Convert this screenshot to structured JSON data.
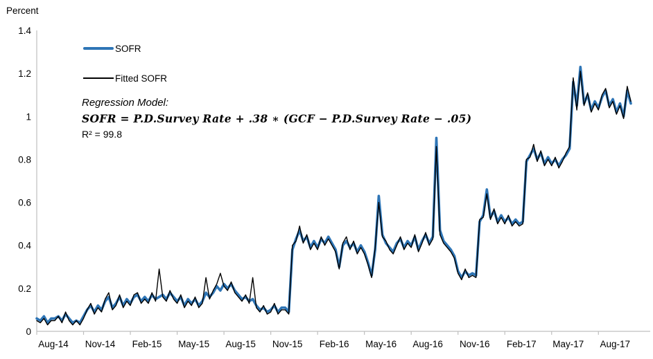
{
  "colors": {
    "accent_blue": "#2E75B6",
    "line_black": "#000000",
    "axis_gray": "#BFBFBF"
  },
  "axis": {
    "y_title": "Percent"
  },
  "legend": {
    "items": [
      {
        "label": "SOFR",
        "color": "#2E75B6",
        "style": "thick"
      },
      {
        "label": "Fitted SOFR",
        "color": "#000000",
        "style": "thin"
      }
    ]
  },
  "annotation": {
    "title": "Regression Model:",
    "formula": "SOFR = P.D.Survey Rate +  .38 ∗ (GCF − P.D.Survey Rate −  .05)",
    "r2": "R² = 99.8"
  },
  "chart_data": {
    "type": "line",
    "title": "",
    "xlabel": "",
    "ylabel": "Percent",
    "ylim": [
      0,
      1.4
    ],
    "y_tick_labels": [
      "0",
      "0.2",
      "0.4",
      "0.6",
      "0.8",
      "1",
      "1.2",
      "1.4"
    ],
    "y_tick_values": [
      0,
      0.2,
      0.4,
      0.6,
      0.8,
      1,
      1.2,
      1.4
    ],
    "grid": false,
    "legend_position": "inside-top-left",
    "x_unit": "weekly samples from Aug-2014 to Oct-2017 (values estimated from plot)",
    "x_tick_labels": [
      "Aug-14",
      "Nov-14",
      "Feb-15",
      "May-15",
      "Aug-15",
      "Nov-15",
      "Feb-16",
      "May-16",
      "Aug-16",
      "Nov-16",
      "Feb-17",
      "May-17",
      "Aug-17"
    ],
    "x_tick_indices": [
      0,
      13,
      26,
      39,
      52,
      65,
      78,
      91,
      104,
      117,
      130,
      143,
      156
    ],
    "x_axis_max_index": 170,
    "series": [
      {
        "name": "SOFR",
        "color": "#2E75B6",
        "stroke_width": 3.6,
        "values": [
          0.06,
          0.05,
          0.07,
          0.04,
          0.06,
          0.06,
          0.07,
          0.05,
          0.08,
          0.06,
          0.04,
          0.05,
          0.04,
          0.07,
          0.1,
          0.12,
          0.09,
          0.12,
          0.1,
          0.14,
          0.16,
          0.11,
          0.13,
          0.16,
          0.12,
          0.15,
          0.13,
          0.16,
          0.17,
          0.14,
          0.16,
          0.14,
          0.17,
          0.15,
          0.16,
          0.17,
          0.15,
          0.18,
          0.16,
          0.14,
          0.16,
          0.12,
          0.15,
          0.13,
          0.15,
          0.12,
          0.14,
          0.18,
          0.16,
          0.18,
          0.21,
          0.19,
          0.22,
          0.2,
          0.22,
          0.19,
          0.17,
          0.15,
          0.16,
          0.14,
          0.15,
          0.12,
          0.1,
          0.11,
          0.09,
          0.1,
          0.12,
          0.09,
          0.11,
          0.11,
          0.09,
          0.38,
          0.43,
          0.47,
          0.42,
          0.44,
          0.39,
          0.42,
          0.39,
          0.43,
          0.41,
          0.44,
          0.41,
          0.38,
          0.3,
          0.4,
          0.42,
          0.39,
          0.41,
          0.37,
          0.4,
          0.37,
          0.32,
          0.26,
          0.38,
          0.63,
          0.45,
          0.41,
          0.39,
          0.37,
          0.41,
          0.43,
          0.39,
          0.42,
          0.4,
          0.44,
          0.38,
          0.42,
          0.45,
          0.41,
          0.44,
          0.9,
          0.47,
          0.42,
          0.4,
          0.38,
          0.35,
          0.28,
          0.25,
          0.28,
          0.26,
          0.27,
          0.26,
          0.51,
          0.54,
          0.66,
          0.53,
          0.56,
          0.51,
          0.54,
          0.51,
          0.53,
          0.5,
          0.52,
          0.5,
          0.51,
          0.79,
          0.82,
          0.85,
          0.8,
          0.83,
          0.78,
          0.81,
          0.78,
          0.8,
          0.77,
          0.8,
          0.82,
          0.85,
          1.16,
          1.05,
          1.23,
          1.06,
          1.1,
          1.03,
          1.07,
          1.04,
          1.09,
          1.12,
          1.05,
          1.08,
          1.02,
          1.06,
          1.0,
          1.12,
          1.06
        ]
      },
      {
        "name": "Fitted SOFR",
        "color": "#000000",
        "stroke_width": 1.4,
        "values": [
          0.05,
          0.04,
          0.06,
          0.03,
          0.05,
          0.05,
          0.07,
          0.04,
          0.09,
          0.05,
          0.03,
          0.05,
          0.03,
          0.06,
          0.1,
          0.13,
          0.08,
          0.11,
          0.09,
          0.15,
          0.18,
          0.1,
          0.12,
          0.17,
          0.11,
          0.14,
          0.12,
          0.17,
          0.18,
          0.13,
          0.15,
          0.13,
          0.18,
          0.14,
          0.29,
          0.16,
          0.14,
          0.19,
          0.15,
          0.13,
          0.17,
          0.11,
          0.14,
          0.12,
          0.16,
          0.11,
          0.13,
          0.25,
          0.15,
          0.19,
          0.22,
          0.27,
          0.21,
          0.19,
          0.23,
          0.18,
          0.16,
          0.14,
          0.17,
          0.13,
          0.25,
          0.11,
          0.09,
          0.12,
          0.08,
          0.09,
          0.13,
          0.08,
          0.1,
          0.1,
          0.08,
          0.4,
          0.42,
          0.49,
          0.41,
          0.45,
          0.38,
          0.41,
          0.38,
          0.44,
          0.4,
          0.43,
          0.4,
          0.37,
          0.29,
          0.41,
          0.44,
          0.38,
          0.42,
          0.36,
          0.39,
          0.36,
          0.31,
          0.25,
          0.39,
          0.6,
          0.44,
          0.42,
          0.38,
          0.36,
          0.4,
          0.44,
          0.38,
          0.41,
          0.39,
          0.45,
          0.37,
          0.41,
          0.46,
          0.4,
          0.43,
          0.86,
          0.45,
          0.41,
          0.39,
          0.37,
          0.34,
          0.27,
          0.24,
          0.29,
          0.25,
          0.26,
          0.25,
          0.52,
          0.53,
          0.64,
          0.52,
          0.57,
          0.5,
          0.53,
          0.5,
          0.54,
          0.49,
          0.51,
          0.49,
          0.5,
          0.8,
          0.81,
          0.87,
          0.79,
          0.84,
          0.77,
          0.8,
          0.77,
          0.81,
          0.76,
          0.79,
          0.83,
          0.86,
          1.18,
          1.03,
          1.21,
          1.05,
          1.11,
          1.02,
          1.06,
          1.03,
          1.1,
          1.13,
          1.04,
          1.07,
          1.01,
          1.05,
          0.99,
          1.14,
          1.07
        ]
      }
    ]
  }
}
